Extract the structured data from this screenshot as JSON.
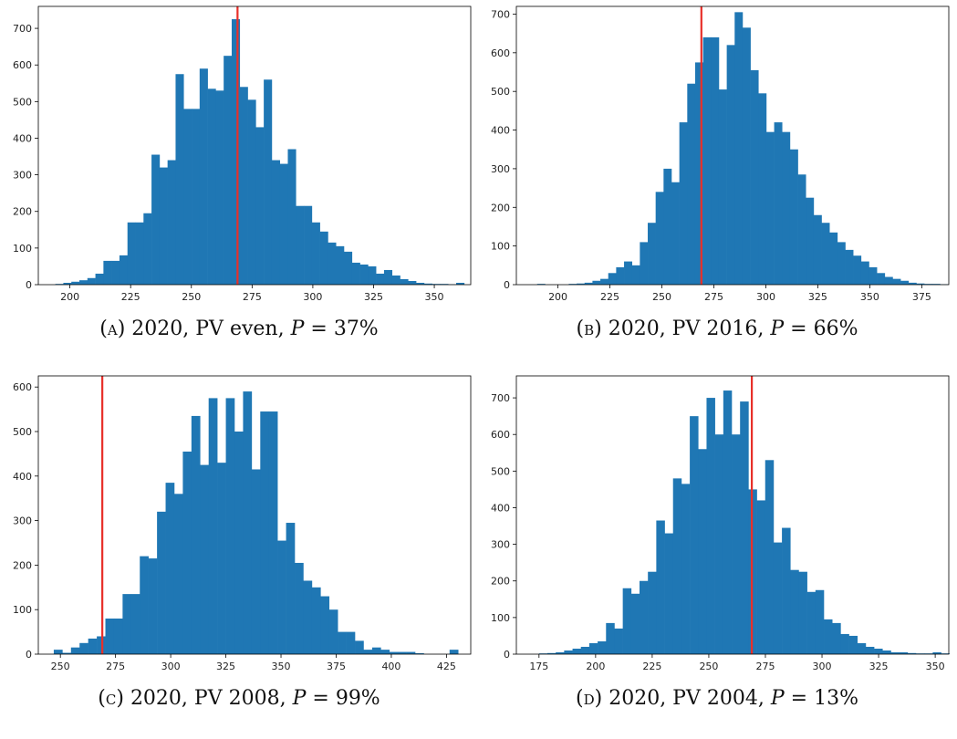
{
  "colors": {
    "bar": "#1f77b4",
    "marker_line": "#e8302a",
    "axis": "#000000"
  },
  "chart_data": [
    {
      "type": "bar",
      "id": "a",
      "caption": {
        "label": "(a)",
        "text": "2020, PV even,",
        "p_symbol": "P",
        "p_value": "= 37%"
      },
      "xlim": [
        187,
        365
      ],
      "ylim": [
        0,
        760
      ],
      "xticks": [
        200,
        225,
        250,
        275,
        300,
        325,
        350
      ],
      "yticks": [
        0,
        100,
        200,
        300,
        400,
        500,
        600,
        700
      ],
      "bin_start": 194,
      "bin_width": 3.3,
      "values": [
        2,
        5,
        8,
        12,
        18,
        30,
        65,
        65,
        80,
        170,
        170,
        195,
        355,
        320,
        340,
        575,
        480,
        480,
        590,
        535,
        530,
        625,
        725,
        540,
        505,
        430,
        560,
        340,
        330,
        370,
        215,
        215,
        170,
        145,
        115,
        105,
        90,
        60,
        55,
        50,
        30,
        40,
        25,
        15,
        10,
        5,
        3,
        2,
        2,
        1,
        5
      ],
      "marker_x": 269,
      "grid": false
    },
    {
      "type": "bar",
      "id": "b",
      "caption": {
        "label": "(b)",
        "text": "2020, PV 2016,",
        "p_symbol": "P",
        "p_value": "= 66%"
      },
      "xlim": [
        180,
        388
      ],
      "ylim": [
        0,
        720
      ],
      "xticks": [
        200,
        225,
        250,
        275,
        300,
        325,
        350,
        375
      ],
      "yticks": [
        0,
        100,
        200,
        300,
        400,
        500,
        600,
        700
      ],
      "bin_start": 190,
      "bin_width": 3.8,
      "values": [
        2,
        0,
        0,
        0,
        2,
        3,
        5,
        10,
        15,
        30,
        45,
        60,
        50,
        110,
        160,
        240,
        300,
        265,
        420,
        520,
        575,
        640,
        640,
        505,
        620,
        705,
        665,
        555,
        495,
        395,
        420,
        395,
        350,
        285,
        225,
        180,
        160,
        135,
        110,
        90,
        75,
        60,
        45,
        30,
        20,
        15,
        10,
        5,
        3,
        2,
        2,
        1
      ],
      "marker_x": 269,
      "grid": false
    },
    {
      "type": "bar",
      "id": "c",
      "caption": {
        "label": "(c)",
        "text": "2020, PV 2008,",
        "p_symbol": "P",
        "p_value": "= 99%"
      },
      "xlim": [
        240,
        436
      ],
      "ylim": [
        0,
        625
      ],
      "xticks": [
        250,
        275,
        300,
        325,
        350,
        375,
        400,
        425
      ],
      "yticks": [
        0,
        100,
        200,
        300,
        400,
        500,
        600
      ],
      "bin_start": 247,
      "bin_width": 3.9,
      "values": [
        10,
        3,
        15,
        25,
        35,
        40,
        80,
        80,
        135,
        135,
        220,
        215,
        320,
        385,
        360,
        455,
        535,
        425,
        575,
        430,
        575,
        500,
        590,
        415,
        545,
        545,
        255,
        295,
        205,
        165,
        150,
        130,
        100,
        50,
        50,
        30,
        10,
        15,
        10,
        5,
        5,
        5,
        2,
        0,
        0,
        0,
        10
      ],
      "marker_x": 269,
      "grid": false
    },
    {
      "type": "bar",
      "id": "d",
      "caption": {
        "label": "(d)",
        "text": "2020, PV 2004,",
        "p_symbol": "P",
        "p_value": "= 13%"
      },
      "xlim": [
        165,
        356
      ],
      "ylim": [
        0,
        760
      ],
      "xticks": [
        175,
        200,
        225,
        250,
        275,
        300,
        325,
        350
      ],
      "yticks": [
        0,
        100,
        200,
        300,
        400,
        500,
        600,
        700
      ],
      "bin_start": 175,
      "bin_width": 3.7,
      "values": [
        2,
        3,
        5,
        10,
        15,
        20,
        30,
        35,
        85,
        70,
        180,
        165,
        200,
        225,
        365,
        330,
        480,
        465,
        650,
        560,
        700,
        600,
        720,
        600,
        690,
        450,
        420,
        530,
        305,
        345,
        230,
        225,
        170,
        175,
        95,
        85,
        55,
        50,
        30,
        20,
        15,
        10,
        5,
        5,
        3,
        2,
        2,
        5,
        2
      ],
      "marker_x": 269,
      "grid": false
    }
  ]
}
